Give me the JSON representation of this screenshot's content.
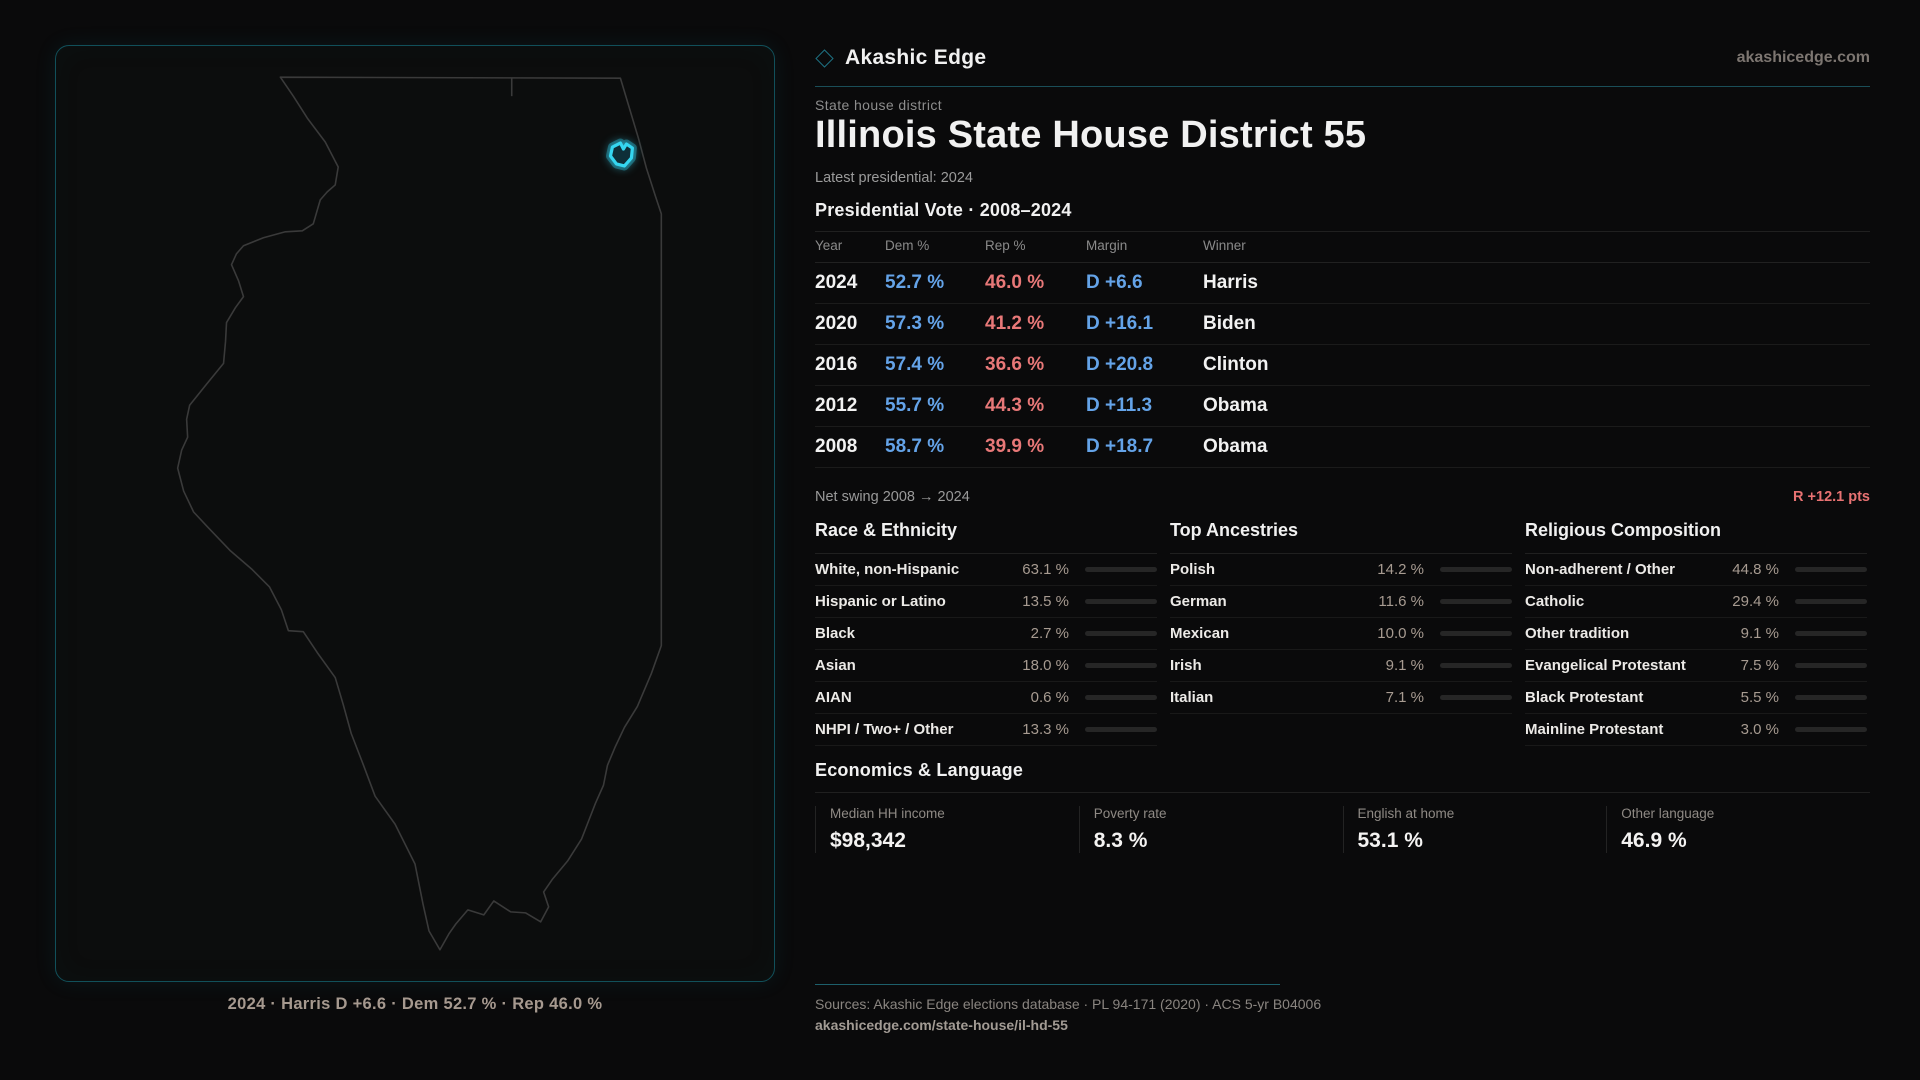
{
  "brand": {
    "name": "Akashic Edge",
    "domain": "akashicedge.com",
    "diamond_icon": "diamond-outline"
  },
  "header": {
    "kicker": "State house district",
    "title": "Illinois State House District 55",
    "subtitle": "Latest presidential: 2024"
  },
  "vote_table": {
    "heading": "Presidential Vote · 2008–2024",
    "columns": [
      "Year",
      "Dem %",
      "Rep %",
      "Margin",
      "Winner"
    ],
    "rows": [
      {
        "year": "2024",
        "dem": "52.7 %",
        "rep": "46.0 %",
        "margin": "D +6.6",
        "winner": "Harris"
      },
      {
        "year": "2020",
        "dem": "57.3 %",
        "rep": "41.2 %",
        "margin": "D +16.1",
        "winner": "Biden"
      },
      {
        "year": "2016",
        "dem": "57.4 %",
        "rep": "36.6 %",
        "margin": "D +20.8",
        "winner": "Clinton"
      },
      {
        "year": "2012",
        "dem": "55.7 %",
        "rep": "44.3 %",
        "margin": "D +11.3",
        "winner": "Obama"
      },
      {
        "year": "2008",
        "dem": "58.7 %",
        "rep": "39.9 %",
        "margin": "D +18.7",
        "winner": "Obama"
      }
    ]
  },
  "net_swing": {
    "label": "Net swing 2008 → 2024",
    "value": "R +12.1 pts"
  },
  "demographics": [
    {
      "heading": "Race & Ethnicity",
      "rows": [
        {
          "label": "White, non-Hispanic",
          "value": "63.1 %",
          "pct": 63.1
        },
        {
          "label": "Hispanic or Latino",
          "value": "13.5 %",
          "pct": 13.5
        },
        {
          "label": "Black",
          "value": "2.7 %",
          "pct": 2.7
        },
        {
          "label": "Asian",
          "value": "18.0 %",
          "pct": 18.0
        },
        {
          "label": "AIAN",
          "value": "0.6 %",
          "pct": 0.6
        },
        {
          "label": "NHPI / Two+ / Other",
          "value": "13.3 %",
          "pct": 13.3
        }
      ]
    },
    {
      "heading": "Top Ancestries",
      "rows": [
        {
          "label": "Polish",
          "value": "14.2 %",
          "pct": 14.2
        },
        {
          "label": "German",
          "value": "11.6 %",
          "pct": 11.6
        },
        {
          "label": "Mexican",
          "value": "10.0 %",
          "pct": 10.0
        },
        {
          "label": "Irish",
          "value": "9.1 %",
          "pct": 9.1
        },
        {
          "label": "Italian",
          "value": "7.1 %",
          "pct": 7.1
        }
      ]
    },
    {
      "heading": "Religious Composition",
      "rows": [
        {
          "label": "Non-adherent / Other",
          "value": "44.8 %",
          "pct": 44.8
        },
        {
          "label": "Catholic",
          "value": "29.4 %",
          "pct": 29.4
        },
        {
          "label": "Other tradition",
          "value": "9.1 %",
          "pct": 9.1
        },
        {
          "label": "Evangelical Protestant",
          "value": "7.5 %",
          "pct": 7.5
        },
        {
          "label": "Black Protestant",
          "value": "5.5 %",
          "pct": 5.5
        },
        {
          "label": "Mainline Protestant",
          "value": "3.0 %",
          "pct": 3.0
        }
      ]
    }
  ],
  "economics": {
    "heading": "Economics & Language",
    "stats": [
      {
        "label": "Median HH income",
        "value": "$98,342"
      },
      {
        "label": "Poverty rate",
        "value": "8.3 %"
      },
      {
        "label": "English at home",
        "value": "53.1 %"
      },
      {
        "label": "Other language",
        "value": "46.9 %"
      }
    ]
  },
  "map": {
    "caption": "2024 · Harris D +6.6 · Dem 52.7 % · Rep 46.0 %",
    "highlight": "District 55"
  },
  "footer": {
    "sources": "Sources: Akashic Edge elections database · PL 94-171 (2020) · ACS 5-yr B04006",
    "permalink": "akashicedge.com/state-house/il-hd-55"
  },
  "colors": {
    "background": "#0a0a0b",
    "panel_border_teal": "#11505a",
    "accent_teal": "#1d6470",
    "district_cyan": "#35d6f0",
    "dem_blue": "#64a3e8",
    "rep_red": "#e87878",
    "swing_red": "#e87272",
    "bar_fill": "#c7c7c7",
    "value_tan": "#a79b91"
  }
}
